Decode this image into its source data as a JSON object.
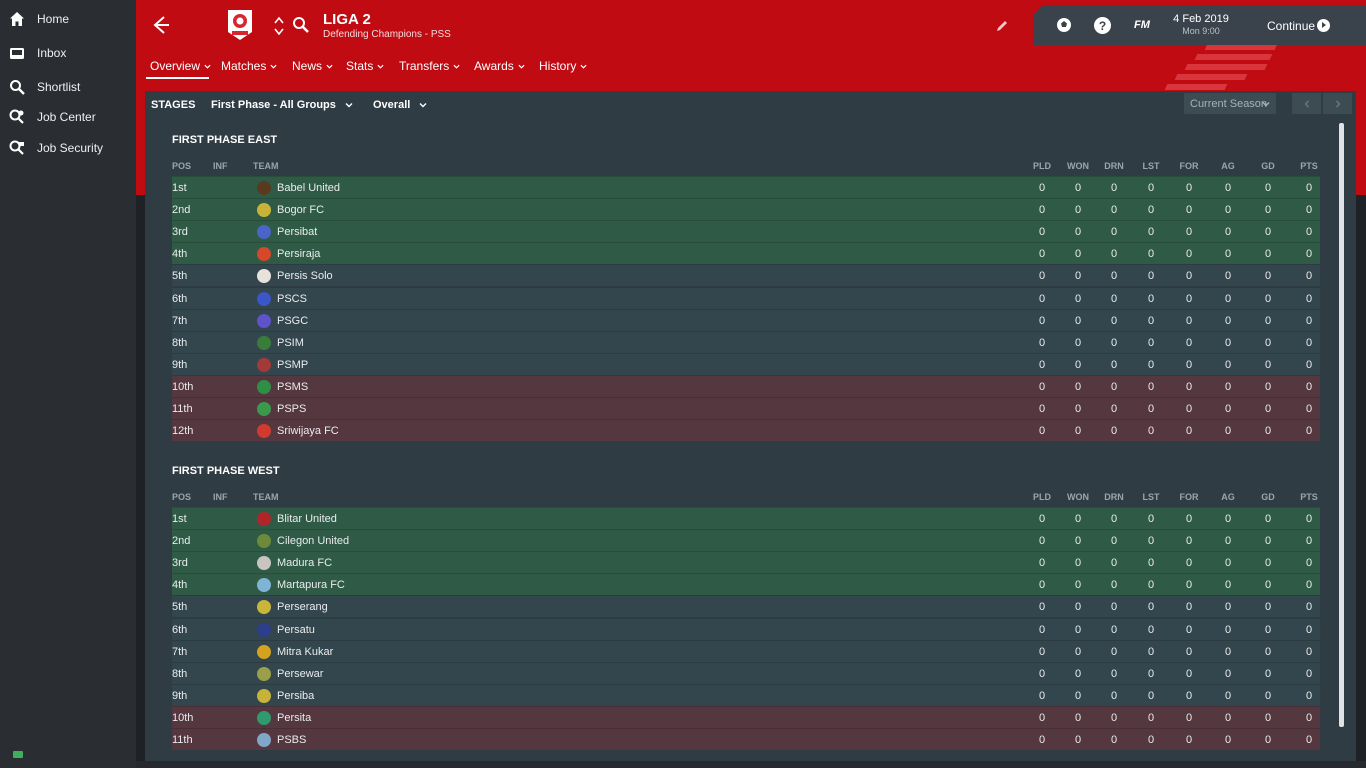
{
  "sidebar": {
    "items": [
      {
        "label": "Home",
        "icon": "home-icon"
      },
      {
        "label": "Inbox",
        "icon": "inbox-icon"
      },
      {
        "label": "Shortlist",
        "icon": "search-icon"
      },
      {
        "label": "Job Center",
        "icon": "job-center-icon"
      },
      {
        "label": "Job Security",
        "icon": "job-security-icon"
      }
    ]
  },
  "header": {
    "title": "LIGA 2",
    "subtitle": "Defending Champions - PSS",
    "colors": {
      "brand": "#c10b12",
      "panel": "#3a434b"
    }
  },
  "top_right": {
    "fm_label": "FM",
    "help_label": "?",
    "date": "4 Feb 2019",
    "time": "Mon 9:00",
    "continue_label": "Continue"
  },
  "nav": {
    "tabs": [
      "Overview",
      "Matches",
      "News",
      "Stats",
      "Transfers",
      "Awards",
      "History"
    ]
  },
  "stage_bar": {
    "stages_label": "STAGES",
    "stage_select": "First Phase - All Groups",
    "view_select": "Overall",
    "season_select": "Current Season"
  },
  "columns": [
    "POS",
    "INF",
    "TEAM",
    "PLD",
    "WON",
    "DRN",
    "LST",
    "FOR",
    "AG",
    "GD",
    "PTS"
  ],
  "groups": [
    {
      "title": "FIRST PHASE EAST",
      "rows": [
        {
          "pos": "1st",
          "team": "Babel United",
          "zone": "promo",
          "badge": "#5a3a1e",
          "stats": [
            "0",
            "0",
            "0",
            "0",
            "0",
            "0",
            "0",
            "0"
          ]
        },
        {
          "pos": "2nd",
          "team": "Bogor FC",
          "zone": "promo",
          "badge": "#c8b338",
          "stats": [
            "0",
            "0",
            "0",
            "0",
            "0",
            "0",
            "0",
            "0"
          ]
        },
        {
          "pos": "3rd",
          "team": "Persibat",
          "zone": "promo",
          "badge": "#4a64c8",
          "stats": [
            "0",
            "0",
            "0",
            "0",
            "0",
            "0",
            "0",
            "0"
          ]
        },
        {
          "pos": "4th",
          "team": "Persiraja",
          "zone": "promo",
          "badge": "#d6472c",
          "stats": [
            "0",
            "0",
            "0",
            "0",
            "0",
            "0",
            "0",
            "0"
          ]
        },
        {
          "pos": "5th",
          "team": "Persis Solo",
          "zone": "mid",
          "badge": "#e8e2dc",
          "stats": [
            "0",
            "0",
            "0",
            "0",
            "0",
            "0",
            "0",
            "0"
          ]
        },
        {
          "pos": "6th",
          "team": "PSCS",
          "zone": "mid",
          "badge": "#3b56c7",
          "stats": [
            "0",
            "0",
            "0",
            "0",
            "0",
            "0",
            "0",
            "0"
          ]
        },
        {
          "pos": "7th",
          "team": "PSGC",
          "zone": "mid",
          "badge": "#5e53c9",
          "stats": [
            "0",
            "0",
            "0",
            "0",
            "0",
            "0",
            "0",
            "0"
          ]
        },
        {
          "pos": "8th",
          "team": "PSIM",
          "zone": "mid",
          "badge": "#3a7d3a",
          "stats": [
            "0",
            "0",
            "0",
            "0",
            "0",
            "0",
            "0",
            "0"
          ]
        },
        {
          "pos": "9th",
          "team": "PSMP",
          "zone": "mid",
          "badge": "#a33a3a",
          "stats": [
            "0",
            "0",
            "0",
            "0",
            "0",
            "0",
            "0",
            "0"
          ]
        },
        {
          "pos": "10th",
          "team": "PSMS",
          "zone": "releg",
          "badge": "#2f8f47",
          "stats": [
            "0",
            "0",
            "0",
            "0",
            "0",
            "0",
            "0",
            "0"
          ]
        },
        {
          "pos": "11th",
          "team": "PSPS",
          "zone": "releg",
          "badge": "#3a9a4c",
          "stats": [
            "0",
            "0",
            "0",
            "0",
            "0",
            "0",
            "0",
            "0"
          ]
        },
        {
          "pos": "12th",
          "team": "Sriwijaya FC",
          "zone": "releg",
          "badge": "#d13b2f",
          "stats": [
            "0",
            "0",
            "0",
            "0",
            "0",
            "0",
            "0",
            "0"
          ]
        }
      ]
    },
    {
      "title": "FIRST PHASE WEST",
      "rows": [
        {
          "pos": "1st",
          "team": "Blitar United",
          "zone": "promo",
          "badge": "#b1252a",
          "stats": [
            "0",
            "0",
            "0",
            "0",
            "0",
            "0",
            "0",
            "0"
          ]
        },
        {
          "pos": "2nd",
          "team": "Cilegon United",
          "zone": "promo",
          "badge": "#6c8a3a",
          "stats": [
            "0",
            "0",
            "0",
            "0",
            "0",
            "0",
            "0",
            "0"
          ]
        },
        {
          "pos": "3rd",
          "team": "Madura FC",
          "zone": "promo",
          "badge": "#c9c4c0",
          "stats": [
            "0",
            "0",
            "0",
            "0",
            "0",
            "0",
            "0",
            "0"
          ]
        },
        {
          "pos": "4th",
          "team": "Martapura FC",
          "zone": "promo",
          "badge": "#7fb4d6",
          "stats": [
            "0",
            "0",
            "0",
            "0",
            "0",
            "0",
            "0",
            "0"
          ]
        },
        {
          "pos": "5th",
          "team": "Perserang",
          "zone": "mid",
          "badge": "#c8b53a",
          "stats": [
            "0",
            "0",
            "0",
            "0",
            "0",
            "0",
            "0",
            "0"
          ]
        },
        {
          "pos": "6th",
          "team": "Persatu",
          "zone": "mid",
          "badge": "#2d3e8c",
          "stats": [
            "0",
            "0",
            "0",
            "0",
            "0",
            "0",
            "0",
            "0"
          ]
        },
        {
          "pos": "7th",
          "team": "Mitra Kukar",
          "zone": "mid",
          "badge": "#d3a21f",
          "stats": [
            "0",
            "0",
            "0",
            "0",
            "0",
            "0",
            "0",
            "0"
          ]
        },
        {
          "pos": "8th",
          "team": "Persewar",
          "zone": "mid",
          "badge": "#9aa04a",
          "stats": [
            "0",
            "0",
            "0",
            "0",
            "0",
            "0",
            "0",
            "0"
          ]
        },
        {
          "pos": "9th",
          "team": "Persiba",
          "zone": "mid",
          "badge": "#c8b33a",
          "stats": [
            "0",
            "0",
            "0",
            "0",
            "0",
            "0",
            "0",
            "0"
          ]
        },
        {
          "pos": "10th",
          "team": "Persita",
          "zone": "releg",
          "badge": "#2f9a6e",
          "stats": [
            "0",
            "0",
            "0",
            "0",
            "0",
            "0",
            "0",
            "0"
          ]
        },
        {
          "pos": "11th",
          "team": "PSBS",
          "zone": "releg",
          "badge": "#7fa7c8",
          "stats": [
            "0",
            "0",
            "0",
            "0",
            "0",
            "0",
            "0",
            "0"
          ]
        }
      ]
    }
  ]
}
